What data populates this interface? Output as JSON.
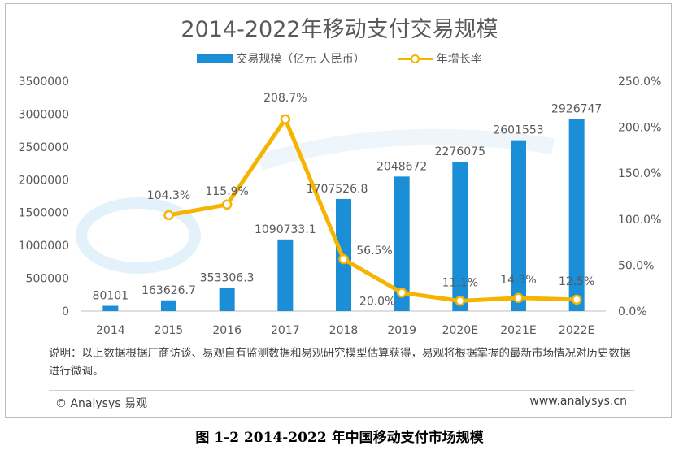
{
  "title": "2014-2022年移动支付交易规模",
  "legend": {
    "bar_label": "交易规模（亿元 人民币）",
    "line_label": "年增长率"
  },
  "colors": {
    "bar": "#1a8ed6",
    "line": "#f6b300",
    "axis_text": "#595959"
  },
  "chart_data": {
    "type": "bar+line",
    "title": "2014-2022年移动支付交易规模",
    "categories": [
      "2014",
      "2015",
      "2016",
      "2017",
      "2018",
      "2019",
      "2020E",
      "2021E",
      "2022E"
    ],
    "series": [
      {
        "name": "交易规模（亿元 人民币）",
        "type": "bar",
        "axis": "left",
        "values": [
          80101,
          163626.7,
          353306.3,
          1090733.1,
          1707526.8,
          2048672,
          2276075,
          2601553,
          2926747
        ],
        "labels": [
          "80101",
          "163626.7",
          "353306.3",
          "1090733.1",
          "1707526.8",
          "2048672",
          "2276075",
          "2601553",
          "2926747"
        ]
      },
      {
        "name": "年增长率",
        "type": "line",
        "axis": "right",
        "values": [
          null,
          104.3,
          115.9,
          208.7,
          56.5,
          20.0,
          11.1,
          14.3,
          12.5
        ],
        "labels": [
          "",
          "104.3%",
          "115.9%",
          "208.7%",
          "56.5%",
          "20.0%",
          "11.1%",
          "14.3%",
          "12.5%"
        ]
      }
    ],
    "yleft": {
      "min": 0,
      "max": 3500000,
      "ticks": [
        "0",
        "500000",
        "1000000",
        "1500000",
        "2000000",
        "2500000",
        "3000000",
        "3500000"
      ]
    },
    "yright": {
      "min": 0,
      "max": 250,
      "ticks": [
        "0.0%",
        "50.0%",
        "100.0%",
        "150.0%",
        "200.0%",
        "250.0%"
      ]
    },
    "grid": false,
    "legend_position": "top"
  },
  "note": "说明：以上数据根据厂商访谈、易观自有监测数据和易观研究模型估算获得，易观将根据掌握的最新市场情况对历史数据进行微调。",
  "copyright": "© Analysys 易观",
  "website": "www.analysys.cn",
  "caption": "图 1-2 2014-2022 年中国移动支付市场规模"
}
